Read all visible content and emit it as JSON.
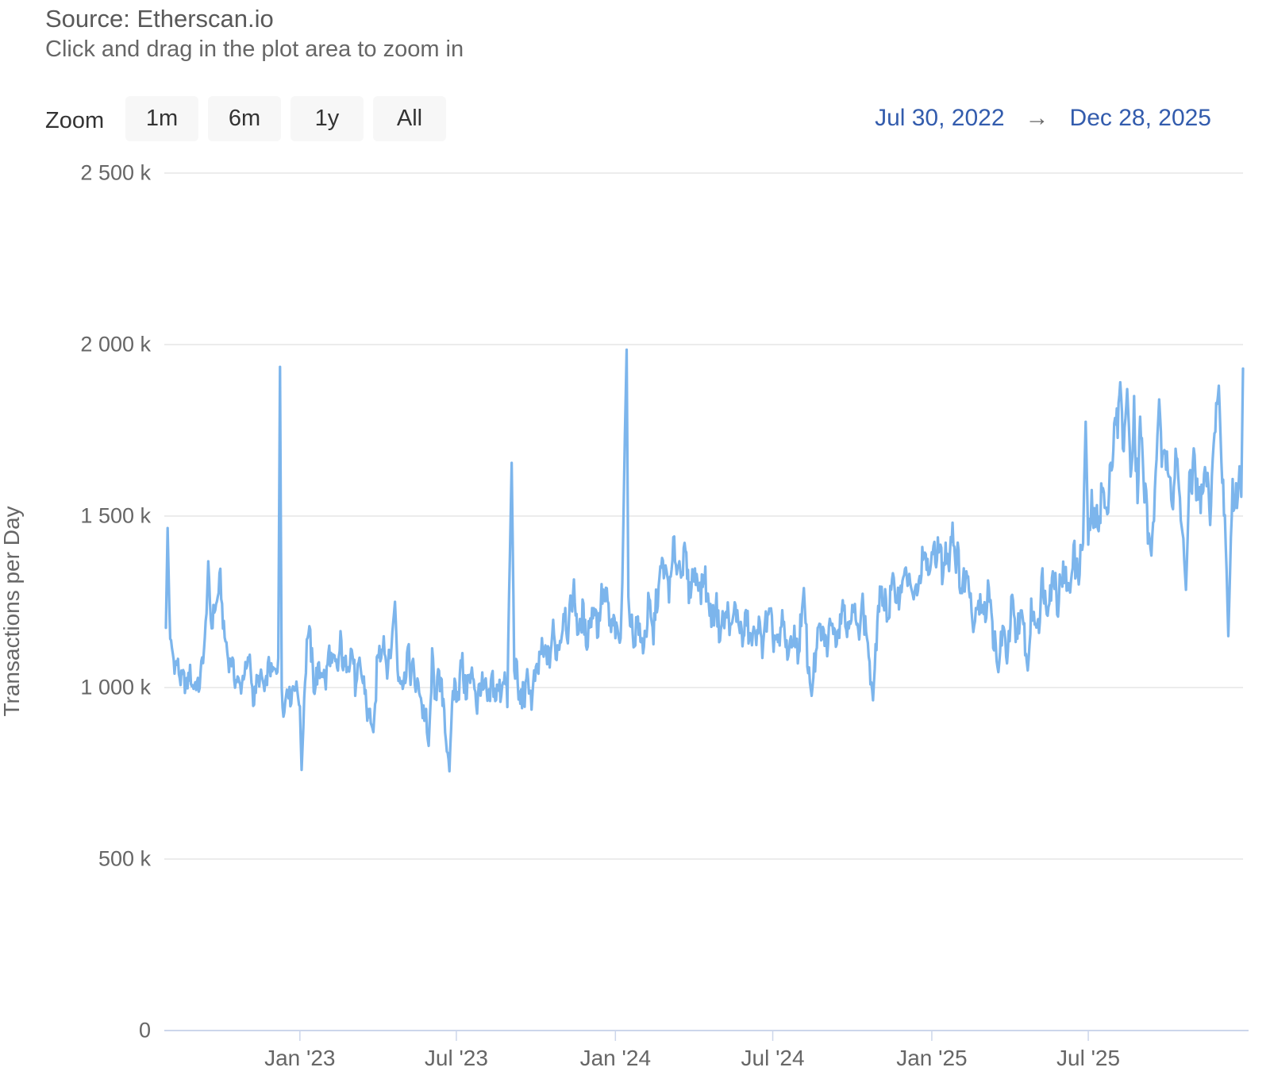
{
  "header": {
    "title": "Source: Etherscan.io",
    "subtitle": "Click and drag in the plot area to zoom in"
  },
  "range_selector": {
    "zoom_label": "Zoom",
    "buttons": [
      "1m",
      "6m",
      "1y",
      "All"
    ],
    "from_date": "Jul 30, 2022",
    "arrow": "→",
    "to_date": "Dec 28, 2025"
  },
  "colors": {
    "series_line": "#7cb5ec",
    "gridline": "#e6e6e6",
    "axis_line": "#ccd6eb",
    "axis_text": "#666666",
    "range_date_text": "#335cad",
    "button_bg": "#f7f7f7",
    "button_text": "#333333"
  },
  "chart_data": {
    "type": "line",
    "title": "Source: Etherscan.io",
    "subtitle": "Click and drag in the plot area to zoom in",
    "xlabel": "",
    "ylabel": "Transactions per Day",
    "unit": "thousand transactions per day",
    "legend": false,
    "grid": true,
    "ylim": [
      0,
      2500
    ],
    "y_ticks": [
      {
        "label": "0",
        "value": 0
      },
      {
        "label": "500 k",
        "value": 500
      },
      {
        "label": "1 000 k",
        "value": 1000
      },
      {
        "label": "1 500 k",
        "value": 1500
      },
      {
        "label": "2 000 k",
        "value": 2000
      },
      {
        "label": "2 500 k",
        "value": 2500
      }
    ],
    "x_range": {
      "start_label": "Jul 30, 2022",
      "end_label": "Dec 28, 2025",
      "total_days": 1246
    },
    "x_ticks": [
      {
        "label": "Jan '23",
        "day": 155
      },
      {
        "label": "Jul '23",
        "day": 336
      },
      {
        "label": "Jan '24",
        "day": 520
      },
      {
        "label": "Jul '24",
        "day": 702
      },
      {
        "label": "Jan '25",
        "day": 886
      },
      {
        "label": "Jul '25",
        "day": 1067
      }
    ],
    "series": [
      {
        "name": "Transactions per Day",
        "color": "#7cb5ec",
        "anchors_day_valueK": [
          [
            0,
            1175
          ],
          [
            2,
            1465
          ],
          [
            5,
            1120
          ],
          [
            10,
            1080
          ],
          [
            16,
            1040
          ],
          [
            22,
            1008
          ],
          [
            28,
            1032
          ],
          [
            34,
            1000
          ],
          [
            40,
            1022
          ],
          [
            45,
            1140
          ],
          [
            49,
            1330
          ],
          [
            53,
            1180
          ],
          [
            58,
            1245
          ],
          [
            63,
            1310
          ],
          [
            68,
            1140
          ],
          [
            72,
            1092
          ],
          [
            78,
            1052
          ],
          [
            84,
            1002
          ],
          [
            90,
            1030
          ],
          [
            96,
            1085
          ],
          [
            102,
            965
          ],
          [
            108,
            1040
          ],
          [
            114,
            992
          ],
          [
            120,
            1068
          ],
          [
            126,
            1030
          ],
          [
            130,
            1090
          ],
          [
            132,
            1935
          ],
          [
            134,
            1000
          ],
          [
            137,
            932
          ],
          [
            141,
            1012
          ],
          [
            145,
            965
          ],
          [
            149,
            1022
          ],
          [
            152,
            990
          ],
          [
            155,
            940
          ],
          [
            157,
            760
          ],
          [
            160,
            950
          ],
          [
            164,
            1190
          ],
          [
            168,
            1090
          ],
          [
            173,
            1002
          ],
          [
            178,
            1062
          ],
          [
            184,
            1022
          ],
          [
            190,
            1100
          ],
          [
            196,
            1042
          ],
          [
            202,
            1112
          ],
          [
            208,
            1052
          ],
          [
            214,
            1120
          ],
          [
            220,
            1002
          ],
          [
            226,
            1062
          ],
          [
            232,
            950
          ],
          [
            240,
            870
          ],
          [
            246,
            1112
          ],
          [
            252,
            1132
          ],
          [
            258,
            1052
          ],
          [
            265,
            1250
          ],
          [
            268,
            1062
          ],
          [
            274,
            1012
          ],
          [
            280,
            1092
          ],
          [
            286,
            1032
          ],
          [
            292,
            1000
          ],
          [
            298,
            940
          ],
          [
            304,
            830
          ],
          [
            308,
            1060
          ],
          [
            313,
            990
          ],
          [
            318,
            1022
          ],
          [
            323,
            900
          ],
          [
            328,
            756
          ],
          [
            332,
            1012
          ],
          [
            336,
            976
          ],
          [
            342,
            1060
          ],
          [
            348,
            992
          ],
          [
            354,
            1046
          ],
          [
            360,
            962
          ],
          [
            366,
            1016
          ],
          [
            372,
            956
          ],
          [
            378,
            1012
          ],
          [
            384,
            972
          ],
          [
            390,
            1032
          ],
          [
            395,
            986
          ],
          [
            400,
            1655
          ],
          [
            403,
            1076
          ],
          [
            407,
            1002
          ],
          [
            412,
            956
          ],
          [
            418,
            1016
          ],
          [
            424,
            976
          ],
          [
            430,
            1056
          ],
          [
            436,
            1110
          ],
          [
            442,
            1082
          ],
          [
            448,
            1150
          ],
          [
            454,
            1102
          ],
          [
            460,
            1220
          ],
          [
            466,
            1172
          ],
          [
            472,
            1300
          ],
          [
            476,
            1162
          ],
          [
            482,
            1202
          ],
          [
            488,
            1146
          ],
          [
            494,
            1242
          ],
          [
            500,
            1182
          ],
          [
            506,
            1282
          ],
          [
            512,
            1222
          ],
          [
            516,
            1162
          ],
          [
            520,
            1182
          ],
          [
            526,
            1112
          ],
          [
            533,
            1985
          ],
          [
            535,
            1262
          ],
          [
            540,
            1142
          ],
          [
            546,
            1192
          ],
          [
            552,
            1106
          ],
          [
            558,
            1232
          ],
          [
            564,
            1162
          ],
          [
            570,
            1300
          ],
          [
            576,
            1362
          ],
          [
            582,
            1282
          ],
          [
            588,
            1402
          ],
          [
            594,
            1342
          ],
          [
            600,
            1386
          ],
          [
            606,
            1282
          ],
          [
            612,
            1340
          ],
          [
            618,
            1290
          ],
          [
            624,
            1320
          ],
          [
            630,
            1200
          ],
          [
            636,
            1240
          ],
          [
            642,
            1160
          ],
          [
            648,
            1222
          ],
          [
            654,
            1172
          ],
          [
            660,
            1232
          ],
          [
            666,
            1142
          ],
          [
            672,
            1196
          ],
          [
            678,
            1122
          ],
          [
            684,
            1182
          ],
          [
            690,
            1132
          ],
          [
            696,
            1212
          ],
          [
            702,
            1162
          ],
          [
            708,
            1122
          ],
          [
            714,
            1186
          ],
          [
            720,
            1092
          ],
          [
            726,
            1152
          ],
          [
            732,
            1106
          ],
          [
            738,
            1290
          ],
          [
            742,
            1082
          ],
          [
            747,
            976
          ],
          [
            752,
            1112
          ],
          [
            758,
            1172
          ],
          [
            764,
            1116
          ],
          [
            770,
            1202
          ],
          [
            776,
            1142
          ],
          [
            782,
            1252
          ],
          [
            788,
            1176
          ],
          [
            794,
            1232
          ],
          [
            800,
            1162
          ],
          [
            806,
            1246
          ],
          [
            812,
            1122
          ],
          [
            818,
            963
          ],
          [
            823,
            1202
          ],
          [
            829,
            1282
          ],
          [
            835,
            1212
          ],
          [
            841,
            1302
          ],
          [
            847,
            1252
          ],
          [
            853,
            1332
          ],
          [
            859,
            1320
          ],
          [
            865,
            1250
          ],
          [
            871,
            1300
          ],
          [
            877,
            1390
          ],
          [
            882,
            1330
          ],
          [
            886,
            1362
          ],
          [
            892,
            1422
          ],
          [
            898,
            1352
          ],
          [
            904,
            1380
          ],
          [
            910,
            1455
          ],
          [
            916,
            1360
          ],
          [
            922,
            1282
          ],
          [
            928,
            1352
          ],
          [
            934,
            1162
          ],
          [
            940,
            1272
          ],
          [
            946,
            1202
          ],
          [
            952,
            1302
          ],
          [
            958,
            1122
          ],
          [
            963,
            1045
          ],
          [
            968,
            1182
          ],
          [
            973,
            1082
          ],
          [
            978,
            1222
          ],
          [
            984,
            1162
          ],
          [
            990,
            1210
          ],
          [
            997,
            1050
          ],
          [
            1002,
            1230
          ],
          [
            1008,
            1180
          ],
          [
            1014,
            1302
          ],
          [
            1020,
            1242
          ],
          [
            1026,
            1332
          ],
          [
            1032,
            1262
          ],
          [
            1038,
            1342
          ],
          [
            1044,
            1272
          ],
          [
            1050,
            1392
          ],
          [
            1056,
            1322
          ],
          [
            1061,
            1452
          ],
          [
            1064,
            1775
          ],
          [
            1067,
            1432
          ],
          [
            1072,
            1522
          ],
          [
            1077,
            1462
          ],
          [
            1082,
            1572
          ],
          [
            1088,
            1502
          ],
          [
            1094,
            1682
          ],
          [
            1100,
            1762
          ],
          [
            1104,
            1890
          ],
          [
            1108,
            1702
          ],
          [
            1112,
            1870
          ],
          [
            1116,
            1642
          ],
          [
            1120,
            1802
          ],
          [
            1124,
            1602
          ],
          [
            1128,
            1762
          ],
          [
            1132,
            1562
          ],
          [
            1136,
            1482
          ],
          [
            1140,
            1385
          ],
          [
            1146,
            1680
          ],
          [
            1149,
            1840
          ],
          [
            1154,
            1600
          ],
          [
            1158,
            1720
          ],
          [
            1164,
            1560
          ],
          [
            1170,
            1650
          ],
          [
            1176,
            1460
          ],
          [
            1180,
            1285
          ],
          [
            1184,
            1580
          ],
          [
            1190,
            1660
          ],
          [
            1196,
            1520
          ],
          [
            1202,
            1620
          ],
          [
            1208,
            1540
          ],
          [
            1214,
            1760
          ],
          [
            1218,
            1880
          ],
          [
            1222,
            1600
          ],
          [
            1226,
            1440
          ],
          [
            1229,
            1150
          ],
          [
            1234,
            1600
          ],
          [
            1238,
            1520
          ],
          [
            1242,
            1640
          ],
          [
            1244,
            1560
          ],
          [
            1246,
            1930
          ]
        ],
        "notable_points": [
          {
            "day": 132,
            "valueK": 1935,
            "note": "Dec 2022 spike"
          },
          {
            "day": 157,
            "valueK": 760,
            "note": "early Jan 2023 low"
          },
          {
            "day": 328,
            "valueK": 756,
            "note": "late Jun 2023 low"
          },
          {
            "day": 400,
            "valueK": 1655,
            "note": "Sep 2023 spike"
          },
          {
            "day": 533,
            "valueK": 1985,
            "note": "Jan 2024 spike (highest)"
          },
          {
            "day": 1104,
            "valueK": 1890,
            "note": "Aug 2025 peak"
          },
          {
            "day": 1246,
            "valueK": 1930,
            "note": "Dec 28 2025 final spike"
          }
        ]
      }
    ],
    "render_hints": {
      "spike_days": [
        2,
        132,
        157,
        240,
        265,
        304,
        328,
        400,
        533,
        738,
        747,
        818,
        934,
        963,
        997,
        1064,
        1104,
        1112,
        1140,
        1149,
        1180,
        1218,
        1229,
        1246
      ],
      "noise_segments": [
        {
          "until_day": 155,
          "amplitudeK": 28
        },
        {
          "until_day": 520,
          "amplitudeK": 42
        },
        {
          "until_day": 886,
          "amplitudeK": 40
        },
        {
          "until_day": 1067,
          "amplitudeK": 48
        },
        {
          "until_day": 1247,
          "amplitudeK": 60
        }
      ],
      "clampK": [
        730,
        1995
      ]
    }
  }
}
